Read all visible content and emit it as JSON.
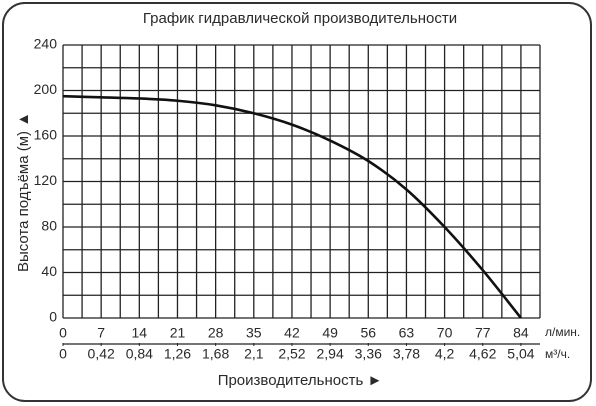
{
  "chart_data": {
    "type": "line",
    "title": "График гидравлической производительности",
    "y_label": "Высота подъёма (м) ▲",
    "x_label": "Производительность ►",
    "x_unit": "л/мин.",
    "x2_unit": "м³/ч.",
    "x": [
      0,
      7,
      14,
      21,
      28,
      35,
      42,
      49,
      56,
      63,
      70,
      77,
      84
    ],
    "series": [
      {
        "color": "#111111",
        "values": [
          195,
          194,
          193,
          191,
          187,
          180,
          170,
          156,
          138,
          113,
          80,
          42,
          0
        ]
      }
    ],
    "xlim": [
      0,
      87.5
    ],
    "xticks": [
      0,
      7,
      14,
      21,
      28,
      35,
      42,
      49,
      56,
      63,
      70,
      77,
      84
    ],
    "x2lim": [
      0,
      5.25
    ],
    "x2ticks": [
      0,
      {
        "value": 0.42,
        "label": "0,42"
      },
      {
        "value": 0.84,
        "label": "0,84"
      },
      {
        "value": 1.26,
        "label": "1,26"
      },
      {
        "value": 1.68,
        "label": "1,68"
      },
      {
        "value": 2.1,
        "label": "2,1"
      },
      {
        "value": 2.52,
        "label": "2,52"
      },
      {
        "value": 2.94,
        "label": "2,94"
      },
      {
        "value": 3.36,
        "label": "3,36"
      },
      {
        "value": 3.78,
        "label": "3,78"
      },
      {
        "value": 4.2,
        "label": "4,2"
      },
      {
        "value": 4.62,
        "label": "4,62"
      },
      {
        "value": 5.04,
        "label": "5,04"
      }
    ],
    "ylim": [
      0,
      240
    ],
    "yticks": [
      0,
      40,
      80,
      120,
      160,
      200,
      240
    ],
    "x_minor_grid": [
      3.5,
      10.5,
      17.5,
      24.5,
      31.5,
      38.5,
      45.5,
      52.5,
      59.5,
      66.5,
      73.5,
      80.5,
      87.5
    ],
    "y_minor_grid": [
      20,
      60,
      100,
      140,
      180,
      220
    ],
    "grid": true
  }
}
